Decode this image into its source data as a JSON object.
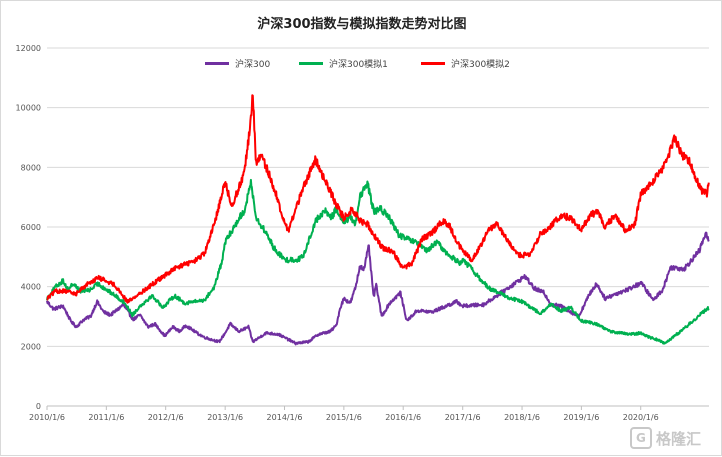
{
  "chart_data": {
    "type": "line",
    "title": "沪深300指数与模拟指数走势对比图",
    "xlabel": "",
    "ylabel": "",
    "ylim": [
      0,
      12000
    ],
    "y_ticks": [
      "0",
      "2000",
      "4000",
      "6000",
      "8000",
      "10000",
      "12000"
    ],
    "x_ticks": [
      "2010/1/6",
      "2011/1/6",
      "2012/1/6",
      "2013/1/6",
      "2014/1/6",
      "2015/1/6",
      "2016/1/6",
      "2017/1/6",
      "2018/1/6",
      "2019/1/6",
      "2020/1/6"
    ],
    "x_range": [
      "2010/1/6",
      "2021/3/1"
    ],
    "grid": "horizontal",
    "legend_position": "top",
    "series": [
      {
        "name": "沪深300",
        "color": "#7030a0",
        "points": [
          [
            "2010/1/6",
            3500
          ],
          [
            "2010/2/15",
            3250
          ],
          [
            "2010/4/15",
            3350
          ],
          [
            "2010/6/1",
            2850
          ],
          [
            "2010/7/5",
            2650
          ],
          [
            "2010/8/20",
            2900
          ],
          [
            "2010/10/1",
            3000
          ],
          [
            "2010/11/10",
            3500
          ],
          [
            "2010/12/20",
            3150
          ],
          [
            "2011/2/1",
            3050
          ],
          [
            "2011/3/20",
            3250
          ],
          [
            "2011/4/20",
            3400
          ],
          [
            "2011/6/20",
            2900
          ],
          [
            "2011/8/1",
            3050
          ],
          [
            "2011/9/20",
            2650
          ],
          [
            "2011/11/1",
            2750
          ],
          [
            "2011/12/31",
            2350
          ],
          [
            "2012/2/20",
            2650
          ],
          [
            "2012/4/1",
            2500
          ],
          [
            "2012/5/10",
            2700
          ],
          [
            "2012/7/15",
            2450
          ],
          [
            "2012/9/1",
            2300
          ],
          [
            "2012/11/30",
            2150
          ],
          [
            "2013/1/6",
            2450
          ],
          [
            "2013/2/6",
            2750
          ],
          [
            "2013/4/1",
            2500
          ],
          [
            "2013/5/29",
            2650
          ],
          [
            "2013/6/25",
            2150
          ],
          [
            "2013/9/15",
            2450
          ],
          [
            "2013/12/1",
            2400
          ],
          [
            "2014/3/15",
            2100
          ],
          [
            "2014/6/1",
            2150
          ],
          [
            "2014/8/1",
            2400
          ],
          [
            "2014/10/15",
            2500
          ],
          [
            "2014/11/20",
            2700
          ],
          [
            "2014/12/15",
            3300
          ],
          [
            "2015/1/6",
            3600
          ],
          [
            "2015/2/15",
            3450
          ],
          [
            "2015/3/20",
            4000
          ],
          [
            "2015/4/15",
            4700
          ],
          [
            "2015/5/10",
            4600
          ],
          [
            "2015/6/8",
            5350
          ],
          [
            "2015/7/8",
            3650
          ],
          [
            "2015/7/25",
            4050
          ],
          [
            "2015/8/26",
            3000
          ],
          [
            "2015/10/15",
            3450
          ],
          [
            "2015/12/20",
            3800
          ],
          [
            "2016/1/28",
            2850
          ],
          [
            "2016/4/1",
            3200
          ],
          [
            "2016/7/1",
            3150
          ],
          [
            "2016/11/30",
            3500
          ],
          [
            "2017/1/6",
            3350
          ],
          [
            "2017/5/15",
            3400
          ],
          [
            "2017/11/20",
            4100
          ],
          [
            "2018/1/24",
            4350
          ],
          [
            "2018/3/20",
            3950
          ],
          [
            "2018/5/20",
            3800
          ],
          [
            "2018/7/5",
            3400
          ],
          [
            "2018/9/1",
            3350
          ],
          [
            "2018/12/20",
            3000
          ],
          [
            "2019/2/25",
            3750
          ],
          [
            "2019/4/10",
            4100
          ],
          [
            "2019/6/1",
            3600
          ],
          [
            "2019/8/1",
            3750
          ],
          [
            "2019/10/15",
            3900
          ],
          [
            "2019/12/31",
            4100
          ],
          [
            "2020/1/6",
            4150
          ],
          [
            "2020/3/23",
            3550
          ],
          [
            "2020/5/20",
            3900
          ],
          [
            "2020/7/8",
            4650
          ],
          [
            "2020/9/30",
            4600
          ],
          [
            "2020/12/31",
            5200
          ],
          [
            "2021/2/10",
            5800
          ],
          [
            "2021/3/1",
            5450
          ]
        ]
      },
      {
        "name": "沪深300模拟1",
        "color": "#00b050",
        "points": [
          [
            "2010/1/6",
            3600
          ],
          [
            "2010/3/1",
            4000
          ],
          [
            "2010/4/15",
            4200
          ],
          [
            "2010/5/15",
            3900
          ],
          [
            "2010/6/15",
            4100
          ],
          [
            "2010/8/1",
            3850
          ],
          [
            "2010/10/1",
            3900
          ],
          [
            "2010/11/15",
            4100
          ],
          [
            "2011/1/6",
            3900
          ],
          [
            "2011/3/1",
            3700
          ],
          [
            "2011/5/1",
            3450
          ],
          [
            "2011/6/15",
            3050
          ],
          [
            "2011/8/1",
            3350
          ],
          [
            "2011/10/15",
            3700
          ],
          [
            "2011/12/20",
            3300
          ],
          [
            "2012/1/6",
            3400
          ],
          [
            "2012/3/1",
            3700
          ],
          [
            "2012/5/1",
            3450
          ],
          [
            "2012/7/1",
            3500
          ],
          [
            "2012/9/1",
            3550
          ],
          [
            "2012/11/1",
            4000
          ],
          [
            "2012/12/20",
            4900
          ],
          [
            "2013/1/6",
            5500
          ],
          [
            "2013/2/20",
            5900
          ],
          [
            "2013/4/1",
            6300
          ],
          [
            "2013/5/1",
            6500
          ],
          [
            "2013/6/15",
            7500
          ],
          [
            "2013/7/15",
            6300
          ],
          [
            "2013/9/15",
            5800
          ],
          [
            "2013/11/1",
            5300
          ],
          [
            "2014/1/6",
            4900
          ],
          [
            "2014/3/20",
            4900
          ],
          [
            "2014/5/1",
            5000
          ],
          [
            "2014/7/15",
            6200
          ],
          [
            "2014/9/15",
            6550
          ],
          [
            "2014/10/20",
            6300
          ],
          [
            "2014/11/20",
            6600
          ],
          [
            "2015/1/6",
            6150
          ],
          [
            "2015/2/15",
            6350
          ],
          [
            "2015/3/15",
            6100
          ],
          [
            "2015/4/15",
            7000
          ],
          [
            "2015/6/1",
            7450
          ],
          [
            "2015/7/10",
            6500
          ],
          [
            "2015/8/20",
            6600
          ],
          [
            "2015/10/1",
            6400
          ],
          [
            "2015/12/15",
            5700
          ],
          [
            "2016/2/1",
            5600
          ],
          [
            "2016/4/1",
            5450
          ],
          [
            "2016/6/1",
            5200
          ],
          [
            "2016/8/1",
            5500
          ],
          [
            "2016/10/1",
            5100
          ],
          [
            "2016/12/20",
            4800
          ],
          [
            "2017/1/6",
            4900
          ],
          [
            "2017/3/1",
            4600
          ],
          [
            "2017/5/1",
            4200
          ],
          [
            "2017/7/1",
            3900
          ],
          [
            "2017/9/1",
            3750
          ],
          [
            "2017/11/1",
            3600
          ],
          [
            "2018/1/6",
            3500
          ],
          [
            "2018/3/1",
            3300
          ],
          [
            "2018/5/1",
            3100
          ],
          [
            "2018/7/1",
            3400
          ],
          [
            "2018/9/1",
            3200
          ],
          [
            "2018/11/1",
            3300
          ],
          [
            "2019/1/6",
            2850
          ],
          [
            "2019/3/1",
            2800
          ],
          [
            "2019/5/1",
            2700
          ],
          [
            "2019/7/1",
            2500
          ],
          [
            "2019/9/1",
            2450
          ],
          [
            "2019/11/1",
            2400
          ],
          [
            "2020/1/6",
            2450
          ],
          [
            "2020/3/1",
            2300
          ],
          [
            "2020/5/1",
            2200
          ],
          [
            "2020/6/1",
            2100
          ],
          [
            "2020/8/1",
            2350
          ],
          [
            "2020/10/1",
            2600
          ],
          [
            "2020/12/1",
            2900
          ],
          [
            "2021/1/15",
            3100
          ],
          [
            "2021/3/1",
            3300
          ]
        ]
      },
      {
        "name": "沪深300模拟2",
        "color": "#ff0000",
        "points": [
          [
            "2010/1/6",
            3600
          ],
          [
            "2010/3/1",
            3850
          ],
          [
            "2010/5/1",
            3850
          ],
          [
            "2010/7/1",
            3750
          ],
          [
            "2010/9/1",
            4050
          ],
          [
            "2010/11/15",
            4300
          ],
          [
            "2011/1/6",
            4200
          ],
          [
            "2011/3/1",
            4050
          ],
          [
            "2011/5/15",
            3500
          ],
          [
            "2011/7/1",
            3650
          ],
          [
            "2011/9/1",
            3900
          ],
          [
            "2011/11/15",
            4200
          ],
          [
            "2012/1/6",
            4400
          ],
          [
            "2012/3/1",
            4600
          ],
          [
            "2012/5/1",
            4750
          ],
          [
            "2012/7/1",
            4850
          ],
          [
            "2012/9/1",
            5100
          ],
          [
            "2012/11/1",
            6100
          ],
          [
            "2012/12/20",
            7200
          ],
          [
            "2013/1/6",
            7500
          ],
          [
            "2013/2/15",
            6700
          ],
          [
            "2013/3/15",
            7100
          ],
          [
            "2013/4/15",
            7500
          ],
          [
            "2013/5/15",
            8300
          ],
          [
            "2013/6/5",
            9200
          ],
          [
            "2013/6/25",
            10450
          ],
          [
            "2013/7/15",
            8100
          ],
          [
            "2013/8/15",
            8400
          ],
          [
            "2013/10/1",
            7800
          ],
          [
            "2013/11/15",
            7100
          ],
          [
            "2014/1/6",
            6100
          ],
          [
            "2014/2/1",
            5900
          ],
          [
            "2014/3/15",
            6600
          ],
          [
            "2014/5/1",
            7300
          ],
          [
            "2014/6/15",
            7900
          ],
          [
            "2014/7/15",
            8250
          ],
          [
            "2014/9/1",
            7700
          ],
          [
            "2014/10/15",
            7200
          ],
          [
            "2014/11/15",
            6800
          ],
          [
            "2015/1/6",
            6300
          ],
          [
            "2015/3/1",
            6600
          ],
          [
            "2015/4/15",
            6200
          ],
          [
            "2015/6/1",
            6100
          ],
          [
            "2015/7/15",
            5700
          ],
          [
            "2015/9/1",
            5300
          ],
          [
            "2015/11/1",
            5200
          ],
          [
            "2016/1/6",
            4600
          ],
          [
            "2016/3/1",
            4800
          ],
          [
            "2016/5/1",
            5600
          ],
          [
            "2016/7/1",
            5800
          ],
          [
            "2016/9/1",
            6200
          ],
          [
            "2016/10/15",
            6050
          ],
          [
            "2016/12/1",
            5500
          ],
          [
            "2017/1/6",
            5200
          ],
          [
            "2017/3/1",
            4900
          ],
          [
            "2017/5/1",
            5400
          ],
          [
            "2017/6/15",
            5900
          ],
          [
            "2017/8/1",
            6100
          ],
          [
            "2017/10/1",
            5600
          ],
          [
            "2017/12/1",
            5100
          ],
          [
            "2018/1/6",
            5050
          ],
          [
            "2018/3/1",
            5100
          ],
          [
            "2018/5/1",
            5800
          ],
          [
            "2018/7/1",
            6000
          ],
          [
            "2018/9/1",
            6400
          ],
          [
            "2018/11/1",
            6300
          ],
          [
            "2019/1/6",
            5900
          ],
          [
            "2019/3/1",
            6400
          ],
          [
            "2019/4/15",
            6500
          ],
          [
            "2019/6/1",
            6000
          ],
          [
            "2019/8/1",
            6400
          ],
          [
            "2019/10/1",
            5900
          ],
          [
            "2019/12/1",
            6100
          ],
          [
            "2020/1/6",
            7100
          ],
          [
            "2020/3/1",
            7400
          ],
          [
            "2020/5/1",
            7800
          ],
          [
            "2020/6/15",
            8200
          ],
          [
            "2020/8/1",
            9000
          ],
          [
            "2020/9/15",
            8400
          ],
          [
            "2020/11/1",
            8200
          ],
          [
            "2020/12/15",
            7600
          ],
          [
            "2021/1/20",
            7200
          ],
          [
            "2021/2/15",
            7100
          ],
          [
            "2021/3/1",
            7500
          ]
        ]
      }
    ]
  },
  "watermark": {
    "text": "格隆汇",
    "logo_glyph": "G"
  }
}
